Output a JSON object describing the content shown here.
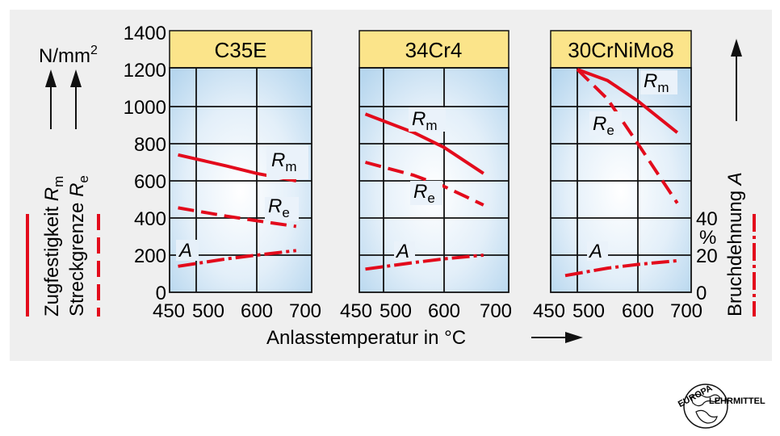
{
  "chart_data": [
    {
      "type": "line",
      "title": "C35E",
      "x_range": [
        450,
        700
      ],
      "xticks": [
        "450",
        "500",
        "600",
        "700"
      ],
      "series": [
        {
          "name": "Rm",
          "x": [
            470,
            550,
            600,
            665
          ],
          "y": [
            740,
            680,
            640,
            600
          ]
        },
        {
          "name": "Re",
          "x": [
            470,
            550,
            600,
            665
          ],
          "y": [
            455,
            410,
            385,
            355
          ]
        },
        {
          "name": "A",
          "x": [
            470,
            550,
            600,
            665
          ],
          "y": [
            14,
            18,
            20,
            22.5
          ]
        }
      ]
    },
    {
      "type": "line",
      "title": "34Cr4",
      "x_range": [
        450,
        700
      ],
      "xticks": [
        "450",
        "500",
        "600",
        "700"
      ],
      "series": [
        {
          "name": "Rm",
          "x": [
            470,
            550,
            600,
            665
          ],
          "y": [
            960,
            860,
            780,
            640
          ]
        },
        {
          "name": "Re",
          "x": [
            470,
            550,
            600,
            665
          ],
          "y": [
            700,
            630,
            570,
            470
          ]
        },
        {
          "name": "A",
          "x": [
            470,
            550,
            600,
            665
          ],
          "y": [
            12.5,
            16,
            18,
            20
          ]
        }
      ]
    },
    {
      "type": "line",
      "title": "30CrNiMo8",
      "x_range": [
        450,
        700
      ],
      "xticks": [
        "450",
        "500",
        "600",
        "700"
      ],
      "series": [
        {
          "name": "Rm",
          "x": [
            500,
            550,
            600,
            665
          ],
          "y": [
            1200,
            1140,
            1030,
            860
          ]
        },
        {
          "name": "Re",
          "x": [
            500,
            550,
            600,
            665
          ],
          "y": [
            1200,
            1040,
            800,
            480
          ]
        },
        {
          "name": "A",
          "x": [
            480,
            550,
            600,
            665
          ],
          "y": [
            9,
            13,
            15,
            17
          ]
        }
      ]
    }
  ],
  "axes": {
    "left_ticks": [
      "0",
      "200",
      "400",
      "600",
      "800",
      "1000",
      "1200",
      "1400"
    ],
    "left_unit": "N/mm",
    "left_unit_sup": "2",
    "left_title_1": "Zugfestigkeit",
    "left_title_2": "Streckgrenze",
    "right_ticks": [
      "0",
      "20",
      "40"
    ],
    "right_unit": "%",
    "right_title": "Bruchdehnung",
    "x_title": "Anlasstemperatur in °C"
  },
  "symbols": {
    "rm_letter": "R",
    "rm_sub": "m",
    "re_letter": "R",
    "re_sub": "e",
    "a_letter": "A"
  },
  "publisher": {
    "line1": "EUROPA",
    "line2": "LEHRMITTEL"
  },
  "colors": {
    "curve": "#e30b1c",
    "panel_bg": "#efefef",
    "title_bg": "#fbe48a",
    "plot_gradient_center": "#ffffff",
    "plot_gradient_edge": "#b6d6ee",
    "grid": "#111111"
  }
}
